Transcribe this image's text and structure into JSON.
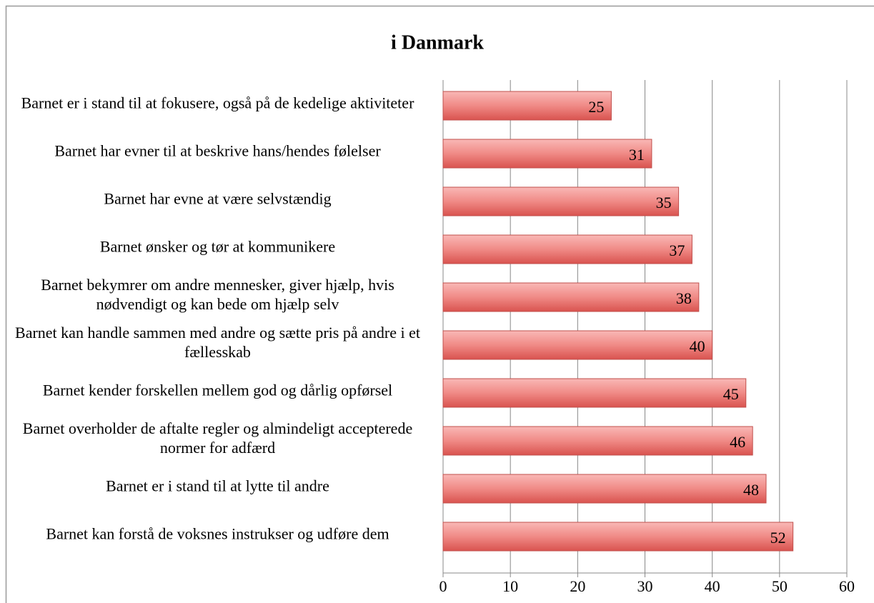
{
  "chart_data": {
    "type": "bar",
    "orientation": "horizontal",
    "title": "i Danmark",
    "categories": [
      "Barnet er i stand til at fokusere, også på de kedelige aktiviteter",
      "Barnet har evner til at beskrive hans/hendes følelser",
      "Barnet har evne at være selvstændig",
      "Barnet ønsker og tør at kommunikere",
      "Barnet bekymrer om andre mennesker, giver hjælp, hvis nødvendigt og kan bede om hjælp selv",
      "Barnet kan handle sammen med andre og sætte pris på andre i et fællesskab",
      "Barnet kender forskellen mellem god og dårlig opførsel",
      "Barnet overholder de aftalte regler og almindeligt accepterede normer for adfærd",
      "Barnet er i stand til at lytte til andre",
      "Barnet kan forstå de voksnes instrukser og udføre dem"
    ],
    "values": [
      25,
      31,
      35,
      37,
      38,
      40,
      45,
      46,
      48,
      52
    ],
    "color": "#c0504d",
    "xlim": [
      0,
      60
    ],
    "xticks": [
      0,
      10,
      20,
      30,
      40,
      50,
      60
    ],
    "grid": true
  }
}
